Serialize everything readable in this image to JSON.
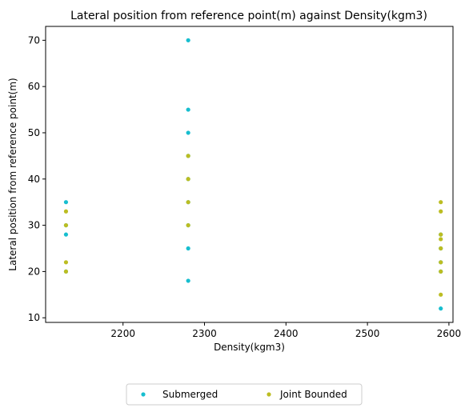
{
  "chart_data": {
    "type": "scatter",
    "title": "Lateral position from reference point(m) against Density(kgm3)",
    "xlabel": "Density(kgm3)",
    "ylabel": "Lateral position from reference point(m)",
    "xlim": [
      2105,
      2605
    ],
    "ylim": [
      9,
      73
    ],
    "xticks": [
      2200,
      2300,
      2400,
      2500,
      2600
    ],
    "yticks": [
      10,
      20,
      30,
      40,
      50,
      60,
      70
    ],
    "grid": false,
    "legend_placement": "bottom-center",
    "series": [
      {
        "name": "Submerged",
        "color": "#17becf",
        "points": [
          {
            "x": 2130,
            "y": 35
          },
          {
            "x": 2130,
            "y": 30
          },
          {
            "x": 2130,
            "y": 28
          },
          {
            "x": 2130,
            "y": 20
          },
          {
            "x": 2280,
            "y": 70
          },
          {
            "x": 2280,
            "y": 55
          },
          {
            "x": 2280,
            "y": 50
          },
          {
            "x": 2280,
            "y": 45
          },
          {
            "x": 2280,
            "y": 40
          },
          {
            "x": 2280,
            "y": 35
          },
          {
            "x": 2280,
            "y": 30
          },
          {
            "x": 2280,
            "y": 25
          },
          {
            "x": 2280,
            "y": 18
          },
          {
            "x": 2590,
            "y": 28
          },
          {
            "x": 2590,
            "y": 25
          },
          {
            "x": 2590,
            "y": 22
          },
          {
            "x": 2590,
            "y": 20
          },
          {
            "x": 2590,
            "y": 12
          }
        ]
      },
      {
        "name": "Joint Bounded",
        "color": "#bcbd22",
        "points": [
          {
            "x": 2130,
            "y": 33
          },
          {
            "x": 2130,
            "y": 30
          },
          {
            "x": 2130,
            "y": 22
          },
          {
            "x": 2130,
            "y": 20
          },
          {
            "x": 2280,
            "y": 45
          },
          {
            "x": 2280,
            "y": 40
          },
          {
            "x": 2280,
            "y": 35
          },
          {
            "x": 2280,
            "y": 30
          },
          {
            "x": 2590,
            "y": 35
          },
          {
            "x": 2590,
            "y": 33
          },
          {
            "x": 2590,
            "y": 28
          },
          {
            "x": 2590,
            "y": 27
          },
          {
            "x": 2590,
            "y": 25
          },
          {
            "x": 2590,
            "y": 22
          },
          {
            "x": 2590,
            "y": 20
          },
          {
            "x": 2590,
            "y": 15
          }
        ]
      }
    ]
  }
}
